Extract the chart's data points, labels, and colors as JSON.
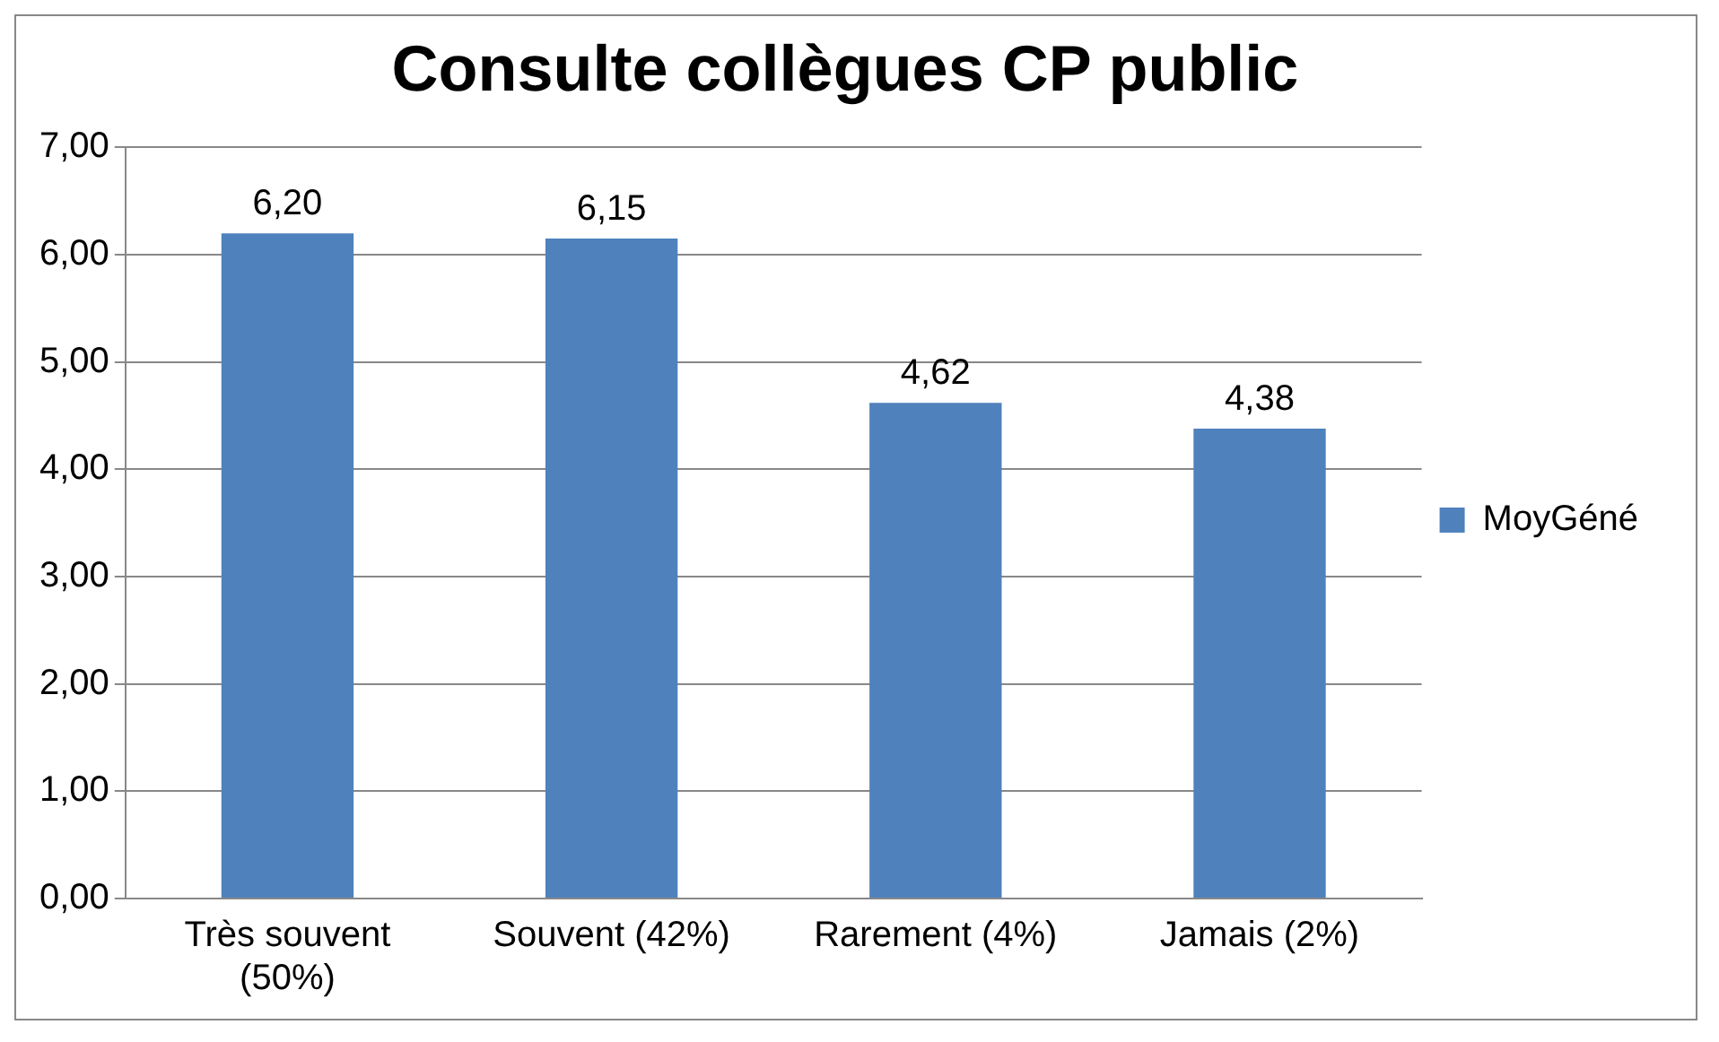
{
  "chart_data": {
    "type": "bar",
    "title": "Consulte collègues CP public",
    "categories": [
      "Très souvent (50%)",
      "Souvent (42%)",
      "Rarement (4%)",
      "Jamais (2%)"
    ],
    "series": [
      {
        "name": "MoyGéné",
        "color": "#4f81bd",
        "values": [
          6.2,
          6.15,
          4.62,
          4.38
        ],
        "value_labels": [
          "6,20",
          "6,15",
          "4,62",
          "4,38"
        ]
      }
    ],
    "ylim": [
      0,
      7
    ],
    "yticks": [
      {
        "value": 0,
        "label": "0,00"
      },
      {
        "value": 1,
        "label": "1,00"
      },
      {
        "value": 2,
        "label": "2,00"
      },
      {
        "value": 3,
        "label": "3,00"
      },
      {
        "value": 4,
        "label": "4,00"
      },
      {
        "value": 5,
        "label": "5,00"
      },
      {
        "value": 6,
        "label": "6,00"
      },
      {
        "value": 7,
        "label": "7,00"
      }
    ],
    "grid": "y",
    "legend": "right"
  }
}
